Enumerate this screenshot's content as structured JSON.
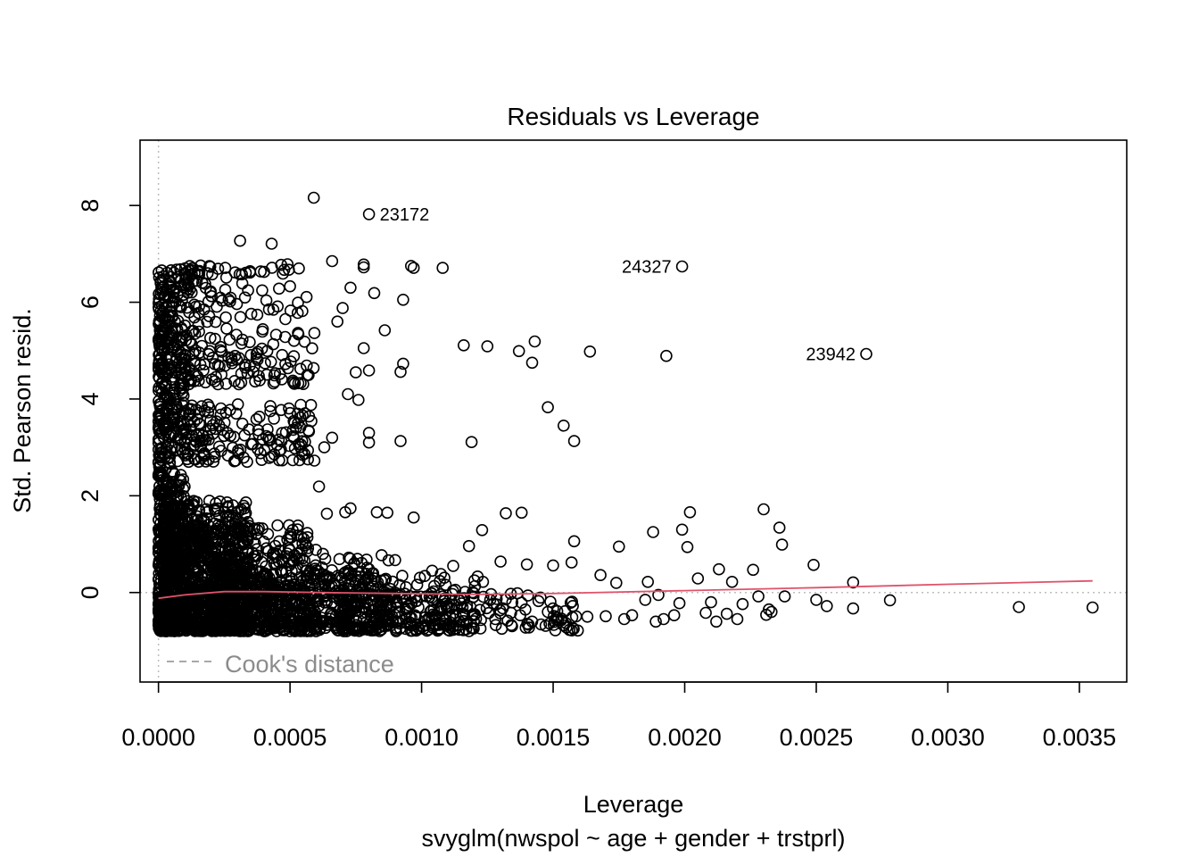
{
  "chart_data": {
    "type": "scatter",
    "title": "Residuals vs Leverage",
    "xlabel": "Leverage",
    "subtitle": "svyglm(nwspol ~ age + gender + trstprl)",
    "ylabel": "Std. Pearson resid.",
    "xlim": [
      -7e-05,
      0.00368
    ],
    "ylim": [
      -1.85,
      9.35
    ],
    "x_ticks": [
      "0.0000",
      "0.0005",
      "0.0010",
      "0.0015",
      "0.0020",
      "0.0025",
      "0.0030",
      "0.0035"
    ],
    "x_tick_values": [
      0,
      0.0005,
      0.001,
      0.0015,
      0.002,
      0.0025,
      0.003,
      0.0035
    ],
    "y_ticks": [
      "0",
      "2",
      "4",
      "6",
      "8"
    ],
    "y_tick_values": [
      0,
      2,
      4,
      6,
      8
    ],
    "legend": {
      "label": "Cook's distance",
      "position": "bottom-left"
    },
    "reference_lines": {
      "h": 0,
      "v": 0
    },
    "colors": {
      "points": "#000000",
      "smooth": "#DF536B",
      "reference": "#BEBEBE",
      "legend": "#8C8C8C"
    },
    "labeled_points": [
      {
        "label": "23172",
        "x": 0.0008,
        "y": 7.82
      },
      {
        "label": "24327",
        "x": 0.00199,
        "y": 6.74
      },
      {
        "label": "23942",
        "x": 0.00269,
        "y": 4.93
      }
    ],
    "series": [
      {
        "name": "",
        "points": [
          [
            0.00059,
            8.16
          ],
          [
            0.00031,
            7.27
          ],
          [
            0.00043,
            7.21
          ],
          [
            0.00073,
            6.3
          ],
          [
            0.00066,
            6.85
          ],
          [
            0.00078,
            6.72
          ],
          [
            0.00078,
            6.78
          ],
          [
            0.00097,
            6.71
          ],
          [
            0.00108,
            6.71
          ],
          [
            0.00096,
            6.75
          ],
          [
            0.00082,
            6.19
          ],
          [
            0.00093,
            6.05
          ],
          [
            0.00086,
            5.42
          ],
          [
            0.0005,
            6.33
          ],
          [
            0.00053,
            5.99
          ],
          [
            0.0007,
            5.88
          ],
          [
            0.00068,
            5.6
          ],
          [
            0.00116,
            5.11
          ],
          [
            0.00125,
            5.09
          ],
          [
            0.00137,
            4.99
          ],
          [
            0.00143,
            5.19
          ],
          [
            0.00142,
            4.75
          ],
          [
            0.00164,
            4.98
          ],
          [
            0.00193,
            4.89
          ],
          [
            0.00093,
            4.73
          ],
          [
            0.00092,
            4.56
          ],
          [
            0.0008,
            4.59
          ],
          [
            0.00075,
            4.55
          ],
          [
            0.00078,
            5.05
          ],
          [
            0.00072,
            4.1
          ],
          [
            0.00076,
            3.98
          ],
          [
            0.00148,
            3.83
          ],
          [
            0.00154,
            3.45
          ],
          [
            0.00158,
            3.13
          ],
          [
            0.00119,
            3.11
          ],
          [
            0.00092,
            3.13
          ],
          [
            0.0008,
            3.1
          ],
          [
            0.0008,
            3.3
          ],
          [
            0.00066,
            3.2
          ],
          [
            0.00063,
            3.0
          ],
          [
            0.00057,
            3.35
          ],
          [
            0.00053,
            3.5
          ],
          [
            0.00061,
            2.19
          ],
          [
            0.00064,
            1.63
          ],
          [
            0.00071,
            1.66
          ],
          [
            0.00083,
            1.66
          ],
          [
            0.00087,
            1.65
          ],
          [
            0.00097,
            1.55
          ],
          [
            0.00073,
            1.74
          ],
          [
            0.00132,
            1.64
          ],
          [
            0.00138,
            1.65
          ],
          [
            0.00123,
            1.29
          ],
          [
            0.00118,
            0.96
          ],
          [
            0.0013,
            0.64
          ],
          [
            0.00158,
            1.06
          ],
          [
            0.00175,
            0.95
          ],
          [
            0.00188,
            1.25
          ],
          [
            0.00199,
            1.3
          ],
          [
            0.00202,
            1.66
          ],
          [
            0.00201,
            0.94
          ],
          [
            0.0023,
            1.72
          ],
          [
            0.00236,
            1.34
          ],
          [
            0.00237,
            0.99
          ],
          [
            0.00249,
            0.57
          ],
          [
            0.00226,
            0.47
          ],
          [
            0.00218,
            0.22
          ],
          [
            0.00213,
            0.48
          ],
          [
            0.00205,
            0.29
          ],
          [
            0.00264,
            0.21
          ],
          [
            0.0025,
            -0.15
          ],
          [
            0.00254,
            -0.28
          ],
          [
            0.00264,
            -0.33
          ],
          [
            0.00278,
            -0.16
          ],
          [
            0.00327,
            -0.3
          ],
          [
            0.00355,
            -0.31
          ],
          [
            0.00231,
            -0.46
          ],
          [
            0.00233,
            -0.4
          ],
          [
            0.00238,
            -0.08
          ],
          [
            0.00232,
            -0.35
          ],
          [
            0.00192,
            -0.55
          ],
          [
            0.00189,
            -0.6
          ],
          [
            0.00196,
            -0.47
          ],
          [
            0.00208,
            -0.42
          ],
          [
            0.00216,
            -0.44
          ],
          [
            0.00198,
            -0.22
          ],
          [
            0.00185,
            -0.15
          ],
          [
            0.0018,
            -0.47
          ],
          [
            0.00177,
            -0.55
          ],
          [
            0.0017,
            -0.49
          ],
          [
            0.00163,
            -0.5
          ],
          [
            0.00155,
            -0.72
          ],
          [
            0.00148,
            -0.4
          ],
          [
            0.00142,
            -0.6
          ],
          [
            0.00134,
            -0.42
          ],
          [
            0.00128,
            -0.55
          ],
          [
            0.0012,
            -0.47
          ],
          [
            0.00111,
            -0.62
          ],
          [
            0.00104,
            -0.52
          ],
          [
            0.00096,
            -0.68
          ],
          [
            0.00089,
            -0.62
          ],
          [
            0.00112,
            0.55
          ],
          [
            0.00104,
            0.45
          ],
          [
            0.0015,
            0.56
          ],
          [
            0.00157,
            0.62
          ],
          [
            0.0014,
            0.58
          ],
          [
            0.00168,
            0.36
          ],
          [
            0.00174,
            0.2
          ],
          [
            0.00186,
            0.22
          ],
          [
            0.0019,
            -0.05
          ],
          [
            0.0021,
            -0.2
          ],
          [
            0.00222,
            -0.24
          ],
          [
            0.00228,
            -0.08
          ],
          [
            0.0022,
            -0.55
          ],
          [
            0.00212,
            -0.6
          ]
        ]
      }
    ],
    "density_clusters": [
      {
        "x": [
          0.0,
          0.0001
        ],
        "y": [
          -0.8,
          6.7
        ],
        "n": 700
      },
      {
        "x": [
          2e-05,
          0.00035
        ],
        "y": [
          -0.8,
          1.9
        ],
        "n": 600
      },
      {
        "x": [
          0.0001,
          0.0006
        ],
        "y": [
          -0.8,
          1.4
        ],
        "n": 520
      },
      {
        "x": [
          0.0002,
          0.0009
        ],
        "y": [
          -0.8,
          0.8
        ],
        "n": 440
      },
      {
        "x": [
          0.0004,
          0.00125
        ],
        "y": [
          -0.8,
          0.4
        ],
        "n": 340
      },
      {
        "x": [
          0.0007,
          0.0016
        ],
        "y": [
          -0.8,
          0.0
        ],
        "n": 220
      },
      {
        "x": [
          0.0001,
          0.0006
        ],
        "y": [
          2.7,
          3.9
        ],
        "n": 160
      },
      {
        "x": [
          0.0001,
          0.0006
        ],
        "y": [
          4.3,
          6.8
        ],
        "n": 220
      }
    ],
    "smooth_line": [
      [
        0.0,
        -0.12
      ],
      [
        0.0001,
        -0.05
      ],
      [
        0.00025,
        0.02
      ],
      [
        0.0004,
        0.02
      ],
      [
        0.0006,
        0.0
      ],
      [
        0.0009,
        -0.02
      ],
      [
        0.0012,
        -0.04
      ],
      [
        0.0015,
        -0.02
      ],
      [
        0.002,
        0.04
      ],
      [
        0.0025,
        0.1
      ],
      [
        0.003,
        0.17
      ],
      [
        0.00355,
        0.24
      ]
    ]
  }
}
